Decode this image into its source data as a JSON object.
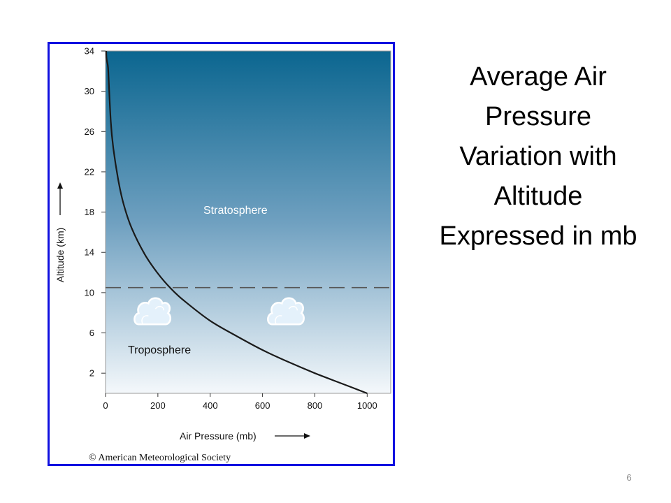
{
  "slide": {
    "title_lines": [
      "Average Air",
      "Pressure",
      "Variation with",
      "Altitude",
      "Expressed in mb"
    ],
    "page_number": "6",
    "credit": "© American Meteorological Society"
  },
  "colors": {
    "frame_border": "#1010e0",
    "sky_top": "#0b6690",
    "sky_mid": "#6fa0c0",
    "sky_bottom": "#f4f8fb",
    "curve": "#1a1a1a",
    "tropopause": "#555555",
    "stratosphere_label": "#ffffff",
    "troposphere_label": "#111111",
    "cloud_fill": "#e4f1fb",
    "cloud_stroke": "#ffffff"
  },
  "chart_data": {
    "type": "line",
    "title": "",
    "xlabel": "Air Pressure (mb)",
    "ylabel": "Altitude (km)",
    "xlim": [
      0,
      1090
    ],
    "ylim": [
      0,
      34
    ],
    "x_ticks": [
      0,
      200,
      400,
      600,
      800,
      1000
    ],
    "y_ticks": [
      2,
      6,
      10,
      14,
      18,
      22,
      26,
      30,
      34
    ],
    "grid": false,
    "legend": "none",
    "series": [
      {
        "x": [
          1000,
          900,
          800,
          700,
          600,
          500,
          400,
          300,
          250,
          200,
          150,
          100,
          70,
          50,
          30,
          20,
          10
        ],
        "y": [
          0,
          1.0,
          2.0,
          3.1,
          4.3,
          5.7,
          7.2,
          9.2,
          10.4,
          11.9,
          13.8,
          16.4,
          18.7,
          21.0,
          24.3,
          27.0,
          32.3
        ]
      }
    ],
    "annotations": {
      "tropopause_altitude": 10.5,
      "stratosphere_label": "Stratosphere",
      "troposphere_label": "Troposphere"
    },
    "clouds": [
      {
        "x": 180,
        "y": 8.1,
        "icon": "cumulus-cloud-icon"
      },
      {
        "x": 690,
        "y": 8.1,
        "icon": "cumulus-cloud-icon"
      }
    ]
  }
}
